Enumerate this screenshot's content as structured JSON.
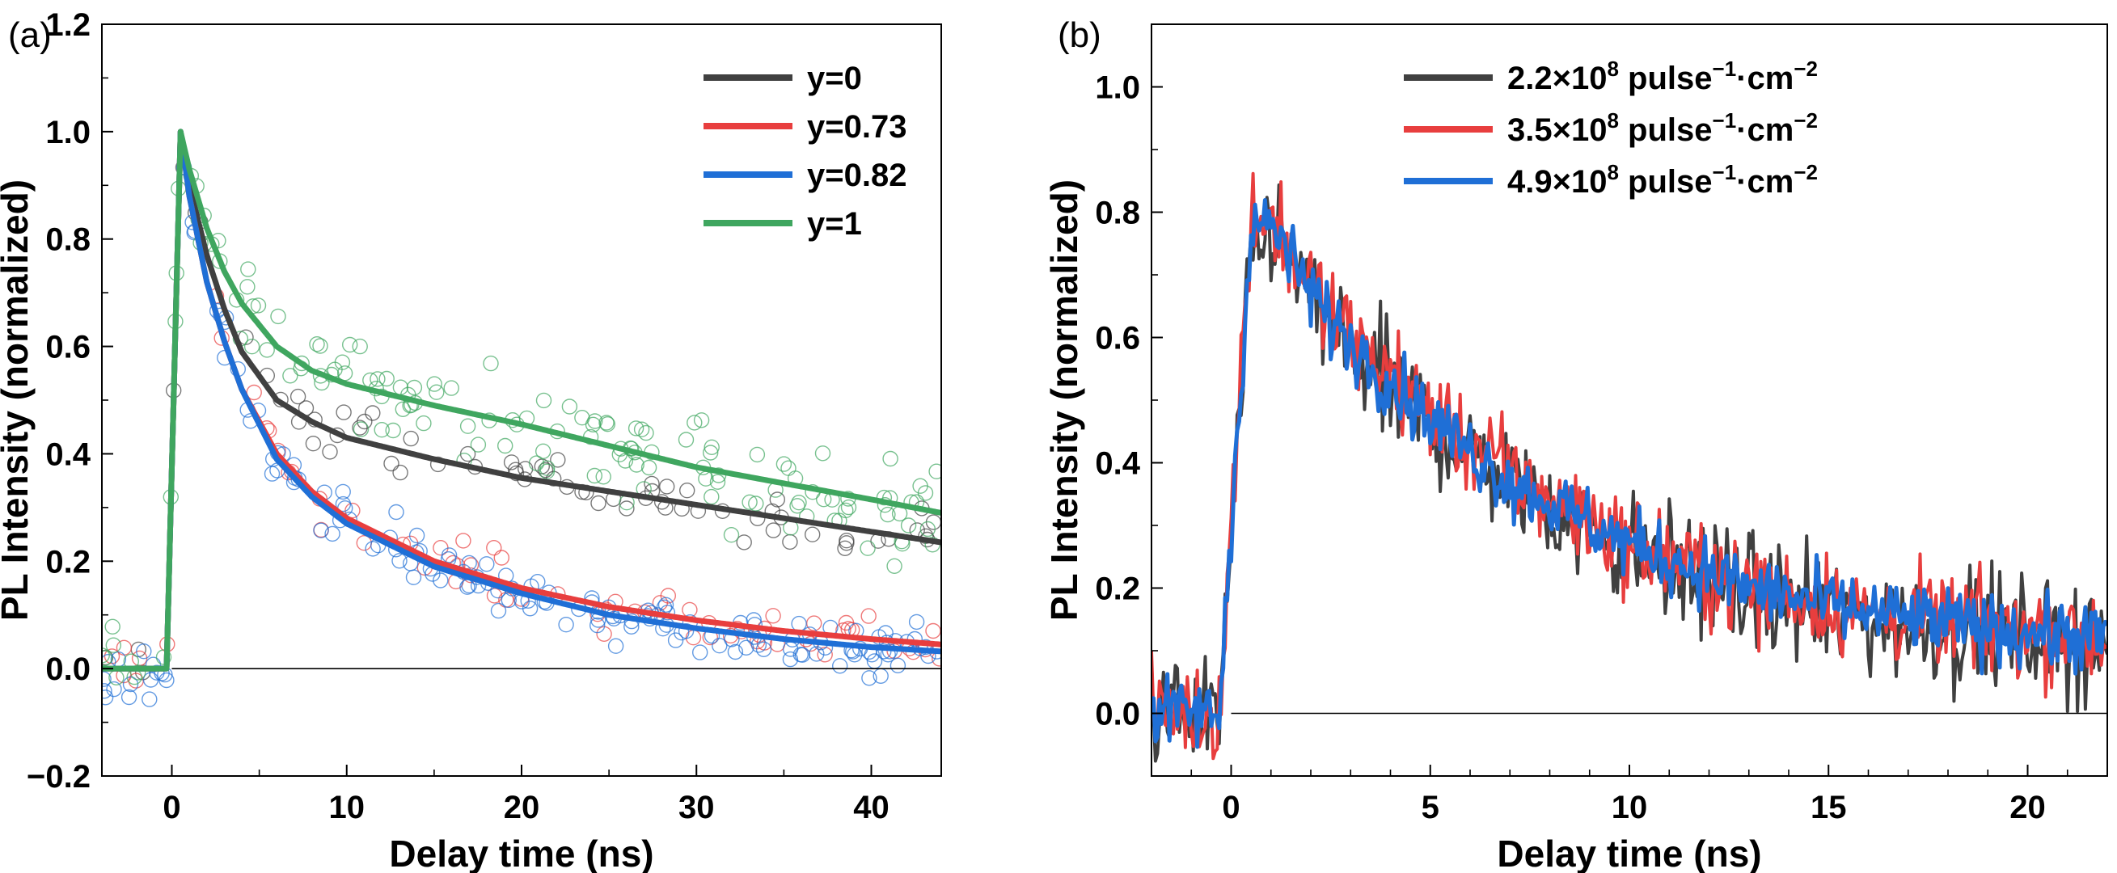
{
  "chart_data": [
    {
      "type": "line",
      "panel_label": "(a)",
      "xlabel": "Delay time (ns)",
      "ylabel": "PL Intensity (normalized)",
      "xlim": [
        -4,
        44
      ],
      "ylim": [
        -0.2,
        1.2
      ],
      "xticks": [
        0,
        10,
        20,
        30,
        40
      ],
      "yticks": [
        -0.2,
        0.0,
        0.2,
        0.4,
        0.6,
        0.8,
        1.0,
        1.2
      ],
      "xtick_labels": [
        "0",
        "10",
        "20",
        "30",
        "40"
      ],
      "ytick_labels": [
        "−0.2",
        "0.0",
        "0.2",
        "0.4",
        "0.6",
        "0.8",
        "1.0",
        "1.2"
      ],
      "grid": false,
      "zero_line": true,
      "legend_position": "top-right",
      "markers": "open circles (scatter data) behind fitted lines",
      "series": [
        {
          "name": "y=0",
          "color": "#404040",
          "x": [
            -4,
            -0.3,
            0.5,
            1,
            2,
            3,
            4,
            6,
            8,
            10,
            15,
            20,
            25,
            30,
            35,
            40,
            44
          ],
          "y": [
            0.0,
            0.0,
            1.0,
            0.9,
            0.77,
            0.67,
            0.59,
            0.5,
            0.46,
            0.43,
            0.39,
            0.355,
            0.33,
            0.305,
            0.28,
            0.255,
            0.235
          ]
        },
        {
          "name": "y=0.73",
          "color": "#e83e3e",
          "x": [
            -4,
            -0.3,
            0.5,
            1,
            2,
            3,
            4,
            6,
            8,
            10,
            15,
            20,
            25,
            30,
            35,
            40,
            44
          ],
          "y": [
            0.0,
            0.0,
            1.0,
            0.88,
            0.72,
            0.61,
            0.52,
            0.4,
            0.33,
            0.28,
            0.2,
            0.15,
            0.115,
            0.09,
            0.07,
            0.055,
            0.045
          ]
        },
        {
          "name": "y=0.82",
          "color": "#1f6fd6",
          "x": [
            -4,
            -0.3,
            0.5,
            1,
            2,
            3,
            4,
            6,
            8,
            10,
            15,
            20,
            25,
            30,
            35,
            40,
            44
          ],
          "y": [
            0.0,
            0.0,
            1.0,
            0.88,
            0.72,
            0.61,
            0.52,
            0.39,
            0.32,
            0.27,
            0.19,
            0.14,
            0.1,
            0.075,
            0.055,
            0.04,
            0.032
          ]
        },
        {
          "name": "y=1",
          "color": "#3fa65f",
          "x": [
            -4,
            -0.3,
            0.5,
            1,
            2,
            3,
            4,
            6,
            8,
            10,
            15,
            20,
            25,
            30,
            35,
            40,
            44
          ],
          "y": [
            0.0,
            0.0,
            1.0,
            0.93,
            0.82,
            0.74,
            0.68,
            0.6,
            0.555,
            0.53,
            0.49,
            0.455,
            0.415,
            0.375,
            0.345,
            0.315,
            0.29
          ]
        }
      ]
    },
    {
      "type": "line",
      "panel_label": "(b)",
      "xlabel": "Delay time (ns)",
      "ylabel": "PL Intensity (normalized)",
      "xlim": [
        -2,
        22
      ],
      "ylim": [
        -0.1,
        1.1
      ],
      "xticks": [
        0,
        5,
        10,
        15,
        20
      ],
      "yticks": [
        0.0,
        0.2,
        0.4,
        0.6,
        0.8,
        1.0
      ],
      "xtick_labels": [
        "0",
        "5",
        "10",
        "15",
        "20"
      ],
      "ytick_labels": [
        "0.0",
        "0.2",
        "0.4",
        "0.6",
        "0.8",
        "1.0"
      ],
      "grid": false,
      "zero_line": true,
      "legend_position": "top-right",
      "series": [
        {
          "name": "2.2×10⁸ pulse⁻¹·cm⁻²",
          "color": "#404040",
          "x": [
            -2,
            -0.3,
            0.5,
            1,
            2,
            3,
            5,
            7,
            10,
            13,
            16,
            19,
            22
          ],
          "y": [
            0.0,
            0.0,
            0.72,
            0.78,
            0.66,
            0.58,
            0.46,
            0.37,
            0.26,
            0.19,
            0.15,
            0.13,
            0.11
          ]
        },
        {
          "name": "3.5×10⁸ pulse⁻¹·cm⁻²",
          "color": "#e83e3e",
          "x": [
            -2,
            -0.3,
            0.5,
            1,
            2,
            3,
            5,
            7,
            10,
            13,
            16,
            19,
            22
          ],
          "y": [
            0.0,
            0.0,
            0.8,
            0.79,
            0.68,
            0.6,
            0.48,
            0.38,
            0.27,
            0.2,
            0.16,
            0.14,
            0.12
          ]
        },
        {
          "name": "4.9×10⁸ pulse⁻¹·cm⁻²",
          "color": "#1f6fd6",
          "x": [
            -2,
            -0.3,
            0.5,
            1,
            2,
            3,
            5,
            7,
            10,
            13,
            16,
            19,
            22
          ],
          "y": [
            0.0,
            0.0,
            0.78,
            0.78,
            0.67,
            0.59,
            0.47,
            0.37,
            0.27,
            0.2,
            0.16,
            0.135,
            0.12
          ]
        }
      ],
      "legend_entries": [
        {
          "mantissa": "2.2",
          "rest": "×10",
          "exp": "8",
          "unit": " pulse",
          "exp2": "−1",
          "unit2": "·cm",
          "exp3": "−2"
        },
        {
          "mantissa": "3.5",
          "rest": "×10",
          "exp": "8",
          "unit": " pulse",
          "exp2": "−1",
          "unit2": "·cm",
          "exp3": "−2"
        },
        {
          "mantissa": "4.9",
          "rest": "×10",
          "exp": "8",
          "unit": " pulse",
          "exp2": "−1",
          "unit2": "·cm",
          "exp3": "−2"
        }
      ]
    }
  ]
}
